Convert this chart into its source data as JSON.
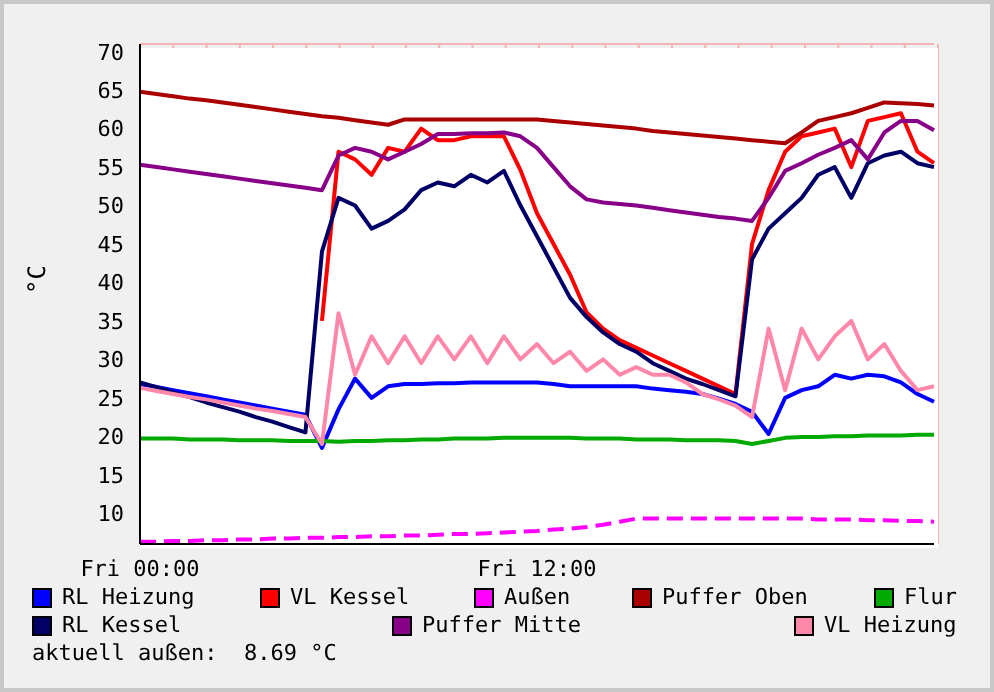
{
  "chart_data": {
    "type": "line",
    "ylabel": "°C",
    "ylim": [
      6,
      71
    ],
    "yticks": [
      10,
      15,
      20,
      25,
      30,
      35,
      40,
      45,
      50,
      55,
      60,
      65,
      70
    ],
    "grid": true,
    "legend": "bottom",
    "marker": "none",
    "line_style": "solid",
    "categories": [
      "Fri 00:00",
      null,
      null,
      null,
      null,
      null,
      null,
      null,
      null,
      null,
      null,
      null,
      null,
      null,
      null,
      null,
      null,
      null,
      null,
      null,
      null,
      null,
      null,
      null,
      "Fri 12:00",
      null,
      null,
      null,
      null,
      null,
      null,
      null,
      null,
      null,
      null,
      null,
      null,
      null,
      null,
      null,
      null,
      null,
      null,
      null,
      null,
      null,
      null,
      null,
      null
    ],
    "annotations": [
      "aktuell außen:  8.69 °C"
    ],
    "series": [
      {
        "name": "RL Heizung",
        "color": "#0000ff",
        "values": [
          26.8,
          26.4,
          26,
          25.6,
          25.2,
          24.8,
          24.4,
          24,
          23.6,
          23.2,
          22.8,
          18.5,
          23.5,
          27.5,
          25,
          26.5,
          26.8,
          26.8,
          26.9,
          26.9,
          27,
          27,
          27,
          27,
          27,
          26.8,
          26.5,
          26.5,
          26.5,
          26.5,
          26.5,
          26.2,
          26,
          25.8,
          25.5,
          24.9,
          24.2,
          23.2,
          20.3,
          25,
          26,
          26.5,
          28,
          27.5,
          28,
          27.8,
          27,
          25.5,
          24.5
        ]
      },
      {
        "name": "VL Kessel",
        "color": "#ff0000",
        "values": [
          null,
          null,
          null,
          null,
          null,
          null,
          null,
          null,
          null,
          null,
          null,
          35,
          57,
          56,
          54,
          57.5,
          57,
          60,
          58.5,
          58.5,
          59,
          59,
          59,
          54.6,
          49,
          45,
          41,
          36.1,
          34,
          32.5,
          31.5,
          30.5,
          29.5,
          28.5,
          27.5,
          26.5,
          25.5,
          45,
          52,
          57,
          59,
          59.5,
          60,
          55,
          61,
          61.5,
          62,
          57,
          55.5
        ]
      },
      {
        "name": "Außen",
        "color": "#ff00ff",
        "line_style": "dashed",
        "values": [
          6.3,
          6.3,
          6.4,
          6.4,
          6.5,
          6.5,
          6.6,
          6.6,
          6.7,
          6.7,
          6.8,
          6.8,
          6.9,
          6.9,
          7,
          7,
          7.1,
          7.1,
          7.2,
          7.3,
          7.3,
          7.4,
          7.5,
          7.6,
          7.7,
          7.9,
          8,
          8.2,
          8.5,
          8.9,
          9.3,
          9.3,
          9.3,
          9.3,
          9.3,
          9.3,
          9.3,
          9.3,
          9.3,
          9.3,
          9.3,
          9.2,
          9.2,
          9.2,
          9.1,
          9.1,
          9,
          9,
          8.9
        ]
      },
      {
        "name": "Puffer Oben",
        "color": "#aa0000",
        "values": [
          64.8,
          64.5,
          64.2,
          63.9,
          63.7,
          63.4,
          63.1,
          62.8,
          62.5,
          62.2,
          61.9,
          61.6,
          61.4,
          61.1,
          60.8,
          60.5,
          61.2,
          61.2,
          61.2,
          61.2,
          61.2,
          61.2,
          61.2,
          61.2,
          61.2,
          61,
          60.8,
          60.6,
          60.4,
          60.2,
          60,
          59.7,
          59.5,
          59.3,
          59.1,
          58.9,
          58.7,
          58.5,
          58.3,
          58.1,
          59.5,
          61,
          61.5,
          62,
          62.7,
          63.4,
          63.3,
          63.2,
          63
        ]
      },
      {
        "name": "Flur",
        "color": "#00aa00",
        "values": [
          19.7,
          19.7,
          19.7,
          19.6,
          19.6,
          19.6,
          19.5,
          19.5,
          19.5,
          19.4,
          19.4,
          19.4,
          19.3,
          19.4,
          19.4,
          19.5,
          19.5,
          19.6,
          19.6,
          19.7,
          19.7,
          19.7,
          19.8,
          19.8,
          19.8,
          19.8,
          19.8,
          19.7,
          19.7,
          19.7,
          19.6,
          19.6,
          19.6,
          19.5,
          19.5,
          19.5,
          19.4,
          19,
          19.4,
          19.8,
          19.9,
          19.9,
          20,
          20,
          20.1,
          20.1,
          20.1,
          20.2,
          20.2
        ]
      },
      {
        "name": "RL Kessel",
        "color": "#000066",
        "values": [
          27,
          26.4,
          25.7,
          25.1,
          24.4,
          23.8,
          23.2,
          22.5,
          21.9,
          21.2,
          20.5,
          44,
          51,
          50,
          47,
          48,
          49.5,
          52,
          53,
          52.5,
          54,
          53,
          54.5,
          50,
          46,
          42,
          38,
          35.5,
          33.5,
          32,
          31,
          29.5,
          28.5,
          27.5,
          26.8,
          26,
          25.2,
          43,
          47,
          49,
          51,
          54,
          55,
          51,
          55.5,
          56.5,
          57,
          55.5,
          55
        ]
      },
      {
        "name": "Puffer Mitte",
        "color": "#880088",
        "values": [
          55.3,
          55,
          54.7,
          54.4,
          54.1,
          53.8,
          53.5,
          53.2,
          52.9,
          52.6,
          52.3,
          52,
          56.5,
          57.5,
          57,
          56,
          57,
          58,
          59.3,
          59.3,
          59.4,
          59.4,
          59.5,
          59,
          57.5,
          55,
          52.5,
          50.8,
          50.4,
          50.2,
          50,
          49.7,
          49.4,
          49.1,
          48.8,
          48.5,
          48.3,
          48,
          51,
          54.5,
          55.5,
          56.6,
          57.5,
          58.5,
          56,
          59.5,
          61,
          61,
          59.8
        ]
      },
      {
        "name": "VL Heizung",
        "color": "#ff88aa",
        "values": [
          26.3,
          25.9,
          25.5,
          25.1,
          24.8,
          24.4,
          24,
          23.6,
          23.3,
          22.9,
          22.5,
          19,
          36,
          28,
          33,
          29.5,
          33,
          29.5,
          33,
          30,
          33,
          29.5,
          33,
          30,
          32,
          29.5,
          31,
          28.5,
          30,
          28,
          29,
          28,
          28,
          27,
          25.5,
          24.8,
          24,
          22.5,
          34,
          26,
          34,
          30,
          33,
          35,
          30,
          32,
          28.5,
          26,
          26.5
        ]
      }
    ]
  }
}
